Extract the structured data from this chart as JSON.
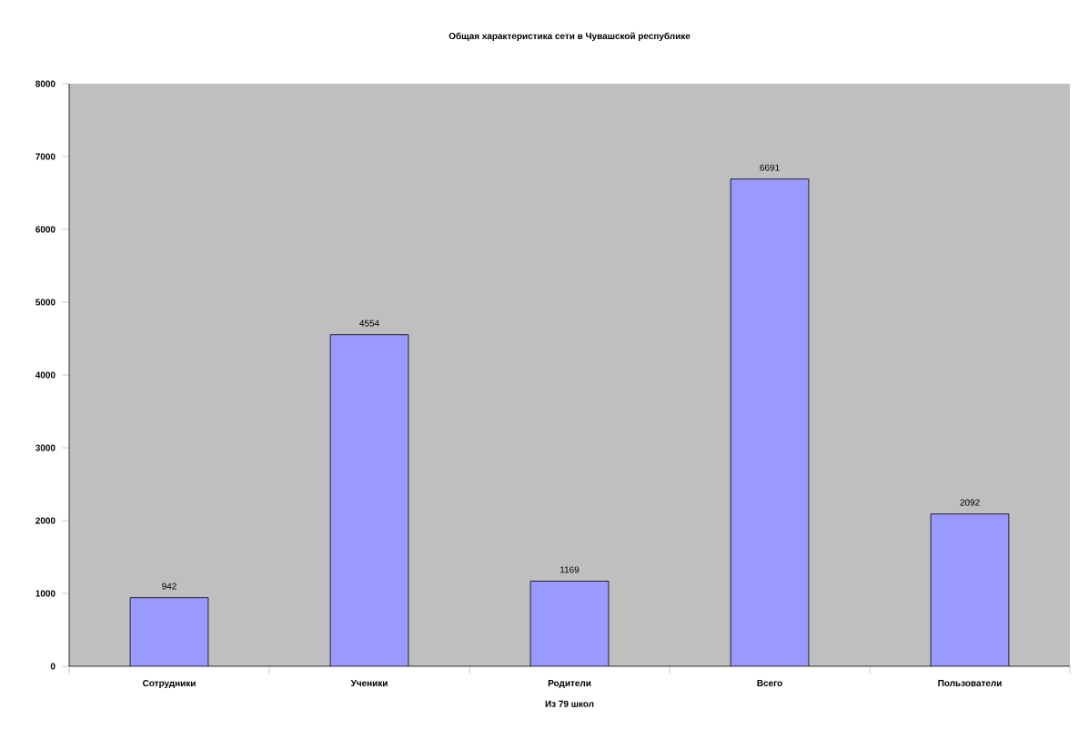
{
  "chart_data": {
    "type": "bar",
    "title": "Общая характеристика сети в Чувашской республике",
    "xlabel": "Из 79 школ",
    "categories": [
      "Сотрудники",
      "Ученики",
      "Родители",
      "Всего",
      "Пользователи"
    ],
    "values": [
      942,
      4554,
      1169,
      6691,
      2092
    ],
    "color": "#9999ff",
    "ylim": [
      0,
      8000
    ],
    "yticks": [
      0,
      1000,
      2000,
      3000,
      4000,
      5000,
      6000,
      7000,
      8000
    ],
    "data_labels": true,
    "grid": false,
    "legend": false
  }
}
